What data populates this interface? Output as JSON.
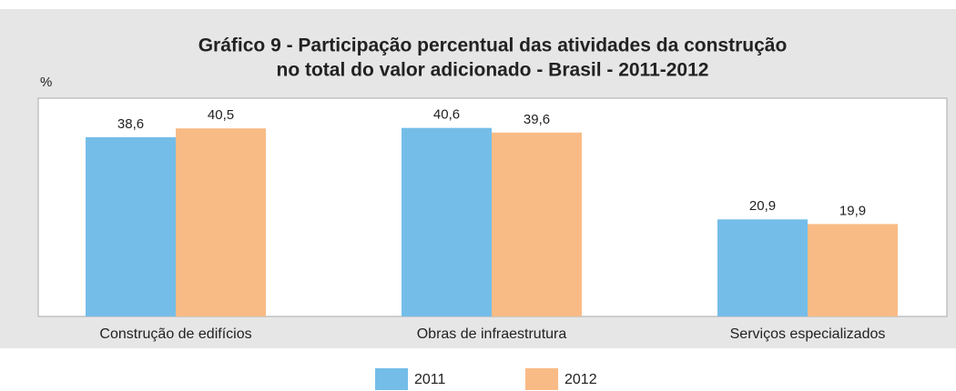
{
  "chart_data": {
    "type": "bar",
    "title": [
      "Gráfico 9 - Participação percentual das atividades da construção",
      "no total do valor adicionado - Brasil - 2011-2012"
    ],
    "y_label": "%",
    "categories": [
      "Construção de edifícios",
      "Obras de infraestrutura",
      "Serviços especializados"
    ],
    "series": [
      {
        "name": "2011",
        "color": "#74bde8",
        "values": [
          38.6,
          40.6,
          20.9
        ],
        "value_labels": [
          "38,6",
          "40,6",
          "20,9"
        ]
      },
      {
        "name": "2012",
        "color": "#f9bb86",
        "values": [
          40.5,
          39.6,
          19.9
        ],
        "value_labels": [
          "40,5",
          "39,6",
          "19,9"
        ]
      }
    ],
    "ylim": [
      0,
      47
    ]
  }
}
